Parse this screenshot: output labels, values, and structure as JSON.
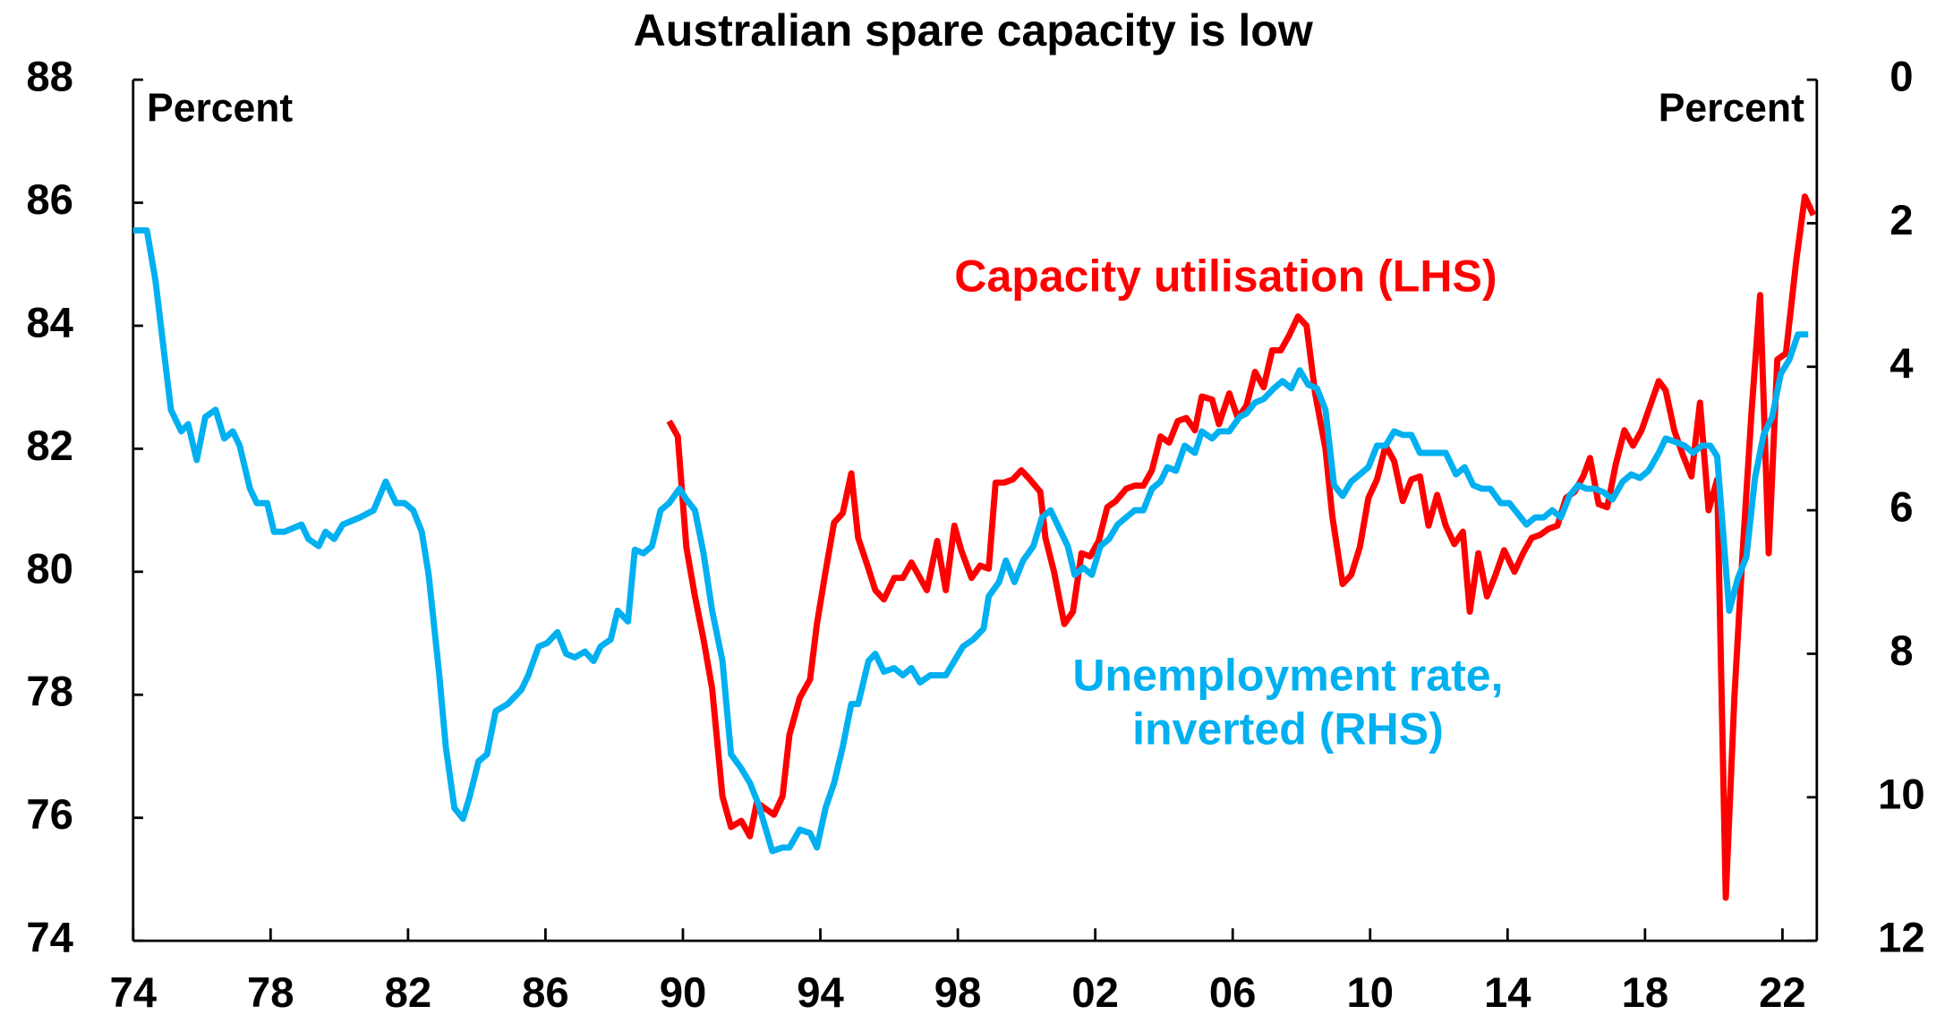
{
  "chart_data": {
    "type": "line",
    "title": "Australian spare capacity is low",
    "left_axis_label": "Percent",
    "right_axis_label": "Percent",
    "xlim": [
      1974,
      2023
    ],
    "xticks": [
      {
        "value": 1974,
        "label": "74"
      },
      {
        "value": 1978,
        "label": "78"
      },
      {
        "value": 1982,
        "label": "82"
      },
      {
        "value": 1986,
        "label": "86"
      },
      {
        "value": 1990,
        "label": "90"
      },
      {
        "value": 1994,
        "label": "94"
      },
      {
        "value": 1998,
        "label": "98"
      },
      {
        "value": 2002,
        "label": "02"
      },
      {
        "value": 2006,
        "label": "06"
      },
      {
        "value": 2010,
        "label": "10"
      },
      {
        "value": 2014,
        "label": "14"
      },
      {
        "value": 2018,
        "label": "18"
      },
      {
        "value": 2022,
        "label": "22"
      }
    ],
    "ylim": [
      74,
      88
    ],
    "yticks": [
      74,
      76,
      78,
      80,
      82,
      84,
      86,
      88
    ],
    "y2lim": [
      0,
      12
    ],
    "y2ticks": [
      0,
      2,
      4,
      6,
      8,
      10,
      12
    ],
    "y2_inverted": true,
    "series": [
      {
        "name": "Capacity utilisation (LHS)",
        "color": "#ff0000",
        "axis": "y",
        "x": [
          1989.6,
          1989.85,
          1990.1,
          1990.35,
          1990.6,
          1990.85,
          1991.15,
          1991.4,
          1991.7,
          1991.95,
          1992.15,
          1992.4,
          1992.65,
          1992.9,
          1993.1,
          1993.4,
          1993.7,
          1993.9,
          1994.15,
          1994.4,
          1994.65,
          1994.9,
          1995.1,
          1995.4,
          1995.6,
          1995.85,
          1996.15,
          1996.4,
          1996.65,
          1996.9,
          1997.1,
          1997.4,
          1997.65,
          1997.9,
          1998.1,
          1998.4,
          1998.65,
          1998.9,
          1999.1,
          1999.35,
          1999.6,
          1999.85,
          2000.1,
          2000.4,
          2000.55,
          2000.8,
          2001.1,
          2001.35,
          2001.6,
          2001.85,
          2002.1,
          2002.35,
          2002.6,
          2002.9,
          2003.15,
          2003.4,
          2003.65,
          2003.9,
          2004.15,
          2004.4,
          2004.65,
          2004.9,
          2005.1,
          2005.4,
          2005.6,
          2005.9,
          2006.15,
          2006.4,
          2006.65,
          2006.9,
          2007.15,
          2007.4,
          2007.65,
          2007.9,
          2008.15,
          2008.4,
          2008.7,
          2008.9,
          2009.2,
          2009.45,
          2009.7,
          2009.95,
          2010.2,
          2010.45,
          2010.7,
          2010.95,
          2011.2,
          2011.45,
          2011.7,
          2011.95,
          2012.2,
          2012.45,
          2012.7,
          2012.9,
          2013.15,
          2013.4,
          2013.65,
          2013.9,
          2014.2,
          2014.45,
          2014.7,
          2014.95,
          2015.2,
          2015.45,
          2015.7,
          2015.95,
          2016.2,
          2016.4,
          2016.65,
          2016.9,
          2017.15,
          2017.4,
          2017.65,
          2017.9,
          2018.15,
          2018.4,
          2018.6,
          2018.85,
          2019.1,
          2019.35,
          2019.6,
          2019.85,
          2020.1,
          2020.35,
          2020.6,
          2020.85,
          2021.1,
          2021.35,
          2021.6,
          2021.85,
          2022.1,
          2022.4,
          2022.65,
          2022.9
        ],
        "values": [
          82.45,
          82.2,
          80.4,
          79.6,
          78.9,
          78.1,
          76.35,
          75.85,
          75.95,
          75.7,
          76.25,
          76.15,
          76.05,
          76.35,
          77.35,
          77.95,
          78.25,
          79.15,
          80.0,
          80.8,
          80.95,
          81.6,
          80.55,
          80.05,
          79.7,
          79.55,
          79.9,
          79.9,
          80.15,
          79.9,
          79.7,
          80.5,
          79.7,
          80.75,
          80.35,
          79.9,
          80.1,
          80.05,
          81.45,
          81.45,
          81.5,
          81.65,
          81.5,
          81.3,
          80.55,
          80.0,
          79.15,
          79.35,
          80.3,
          80.25,
          80.5,
          81.05,
          81.15,
          81.35,
          81.4,
          81.4,
          81.65,
          82.2,
          82.1,
          82.45,
          82.5,
          82.3,
          82.85,
          82.8,
          82.4,
          82.9,
          82.5,
          82.7,
          83.25,
          83.0,
          83.6,
          83.6,
          83.85,
          84.15,
          84.0,
          82.9,
          82.0,
          80.9,
          79.8,
          79.95,
          80.4,
          81.2,
          81.5,
          82.05,
          81.8,
          81.15,
          81.5,
          81.55,
          80.75,
          81.25,
          80.75,
          80.45,
          80.65,
          79.35,
          80.3,
          79.6,
          79.95,
          80.35,
          80.0,
          80.3,
          80.55,
          80.6,
          80.7,
          80.75,
          81.2,
          81.3,
          81.55,
          81.85,
          81.1,
          81.05,
          81.75,
          82.3,
          82.05,
          82.3,
          82.7,
          83.1,
          82.95,
          82.3,
          81.9,
          81.55,
          82.75,
          81.0,
          81.5,
          74.7,
          77.95,
          80.4,
          82.6,
          84.5,
          80.3,
          83.45,
          83.55,
          85.05,
          86.1,
          85.8
        ]
      },
      {
        "name": "Unemployment rate, inverted (RHS)",
        "color": "#00b0f0",
        "axis": "y2",
        "x": [
          1974.0,
          1974.4,
          1974.65,
          1974.9,
          1975.1,
          1975.4,
          1975.6,
          1975.85,
          1976.1,
          1976.4,
          1976.65,
          1976.9,
          1977.1,
          1977.4,
          1977.6,
          1977.9,
          1978.1,
          1978.4,
          1978.9,
          1979.1,
          1979.4,
          1979.6,
          1979.85,
          1980.1,
          1980.6,
          1981.0,
          1981.35,
          1981.65,
          1981.9,
          1982.15,
          1982.4,
          1982.6,
          1982.9,
          1983.1,
          1983.35,
          1983.6,
          1983.8,
          1984.05,
          1984.3,
          1984.55,
          1984.9,
          1985.3,
          1985.5,
          1985.8,
          1986.05,
          1986.35,
          1986.6,
          1986.85,
          1987.15,
          1987.4,
          1987.6,
          1987.9,
          1988.1,
          1988.4,
          1988.6,
          1988.85,
          1989.1,
          1989.35,
          1989.6,
          1989.9,
          1990.1,
          1990.35,
          1990.6,
          1990.85,
          1991.15,
          1991.4,
          1991.7,
          1991.95,
          1992.2,
          1992.6,
          1992.9,
          1993.1,
          1993.4,
          1993.7,
          1993.9,
          1994.15,
          1994.4,
          1994.65,
          1994.9,
          1995.1,
          1995.4,
          1995.6,
          1995.85,
          1996.15,
          1996.4,
          1996.65,
          1996.9,
          1997.2,
          1997.65,
          1997.9,
          1998.15,
          1998.45,
          1998.75,
          1998.9,
          1999.2,
          1999.4,
          1999.65,
          1999.9,
          2000.2,
          2000.45,
          2000.7,
          2000.9,
          2001.2,
          2001.4,
          2001.65,
          2001.9,
          2002.15,
          2002.4,
          2002.65,
          2002.9,
          2003.15,
          2003.4,
          2003.65,
          2003.9,
          2004.1,
          2004.35,
          2004.6,
          2004.9,
          2005.1,
          2005.4,
          2005.6,
          2005.9,
          2006.2,
          2006.4,
          2006.65,
          2006.9,
          2007.2,
          2007.45,
          2007.7,
          2007.95,
          2008.2,
          2008.45,
          2008.7,
          2008.95,
          2009.2,
          2009.45,
          2009.7,
          2009.95,
          2010.2,
          2010.45,
          2010.7,
          2010.95,
          2011.2,
          2011.45,
          2011.7,
          2012.2,
          2012.5,
          2012.75,
          2013.0,
          2013.25,
          2013.5,
          2013.8,
          2014.05,
          2014.3,
          2014.55,
          2014.8,
          2015.05,
          2015.3,
          2015.55,
          2015.8,
          2016.05,
          2016.3,
          2016.55,
          2016.8,
          2017.05,
          2017.35,
          2017.6,
          2017.85,
          2018.1,
          2018.4,
          2018.6,
          2018.9,
          2019.15,
          2019.4,
          2019.65,
          2019.9,
          2020.1,
          2020.45,
          2020.7,
          2020.95,
          2021.2,
          2021.45,
          2021.7,
          2021.95,
          2022.2,
          2022.45,
          2022.75
        ],
        "values": [
          2.1,
          2.1,
          2.8,
          3.8,
          4.6,
          4.9,
          4.8,
          5.3,
          4.7,
          4.6,
          5.0,
          4.9,
          5.1,
          5.7,
          5.9,
          5.9,
          6.3,
          6.3,
          6.2,
          6.4,
          6.5,
          6.3,
          6.4,
          6.2,
          6.1,
          6.0,
          5.6,
          5.9,
          5.9,
          6.0,
          6.3,
          6.9,
          8.25,
          9.3,
          10.15,
          10.3,
          9.98,
          9.5,
          9.4,
          8.8,
          8.7,
          8.5,
          8.3,
          7.9,
          7.85,
          7.7,
          8.0,
          8.05,
          7.97,
          8.1,
          7.9,
          7.8,
          7.4,
          7.55,
          6.55,
          6.6,
          6.5,
          6.0,
          5.9,
          5.7,
          5.85,
          6.0,
          6.6,
          7.4,
          8.1,
          9.4,
          9.6,
          9.8,
          10.1,
          10.75,
          10.7,
          10.7,
          10.45,
          10.5,
          10.7,
          10.15,
          9.8,
          9.3,
          8.7,
          8.7,
          8.1,
          8.0,
          8.25,
          8.2,
          8.3,
          8.2,
          8.4,
          8.3,
          8.3,
          8.1,
          7.9,
          7.8,
          7.65,
          7.2,
          7.0,
          6.7,
          7.0,
          6.7,
          6.5,
          6.1,
          6.0,
          6.2,
          6.5,
          6.9,
          6.8,
          6.9,
          6.5,
          6.4,
          6.2,
          6.1,
          6.0,
          6.0,
          5.7,
          5.6,
          5.4,
          5.45,
          5.1,
          5.2,
          4.9,
          5.0,
          4.9,
          4.9,
          4.7,
          4.65,
          4.5,
          4.45,
          4.3,
          4.2,
          4.3,
          4.05,
          4.25,
          4.3,
          4.6,
          5.65,
          5.8,
          5.6,
          5.5,
          5.4,
          5.1,
          5.1,
          4.9,
          4.95,
          4.95,
          5.2,
          5.2,
          5.2,
          5.5,
          5.4,
          5.65,
          5.7,
          5.7,
          5.9,
          5.9,
          6.05,
          6.2,
          6.1,
          6.1,
          6.0,
          6.1,
          5.8,
          5.65,
          5.7,
          5.7,
          5.75,
          5.85,
          5.6,
          5.5,
          5.55,
          5.45,
          5.2,
          5.0,
          5.05,
          5.1,
          5.2,
          5.1,
          5.1,
          5.25,
          7.4,
          6.95,
          6.65,
          5.55,
          4.95,
          4.7,
          4.1,
          3.9,
          3.55,
          3.55
        ]
      }
    ]
  }
}
